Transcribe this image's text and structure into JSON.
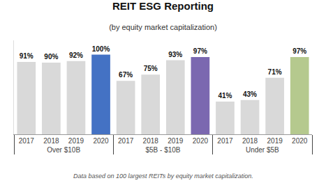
{
  "chart_data": {
    "type": "bar",
    "title": "REIT ESG Reporting",
    "subtitle": "(by equity market capitalization)",
    "annotations": [
      "Data based on 100 largest REITs by equity market capitalization."
    ],
    "series": [
      {
        "name": "Over $10B",
        "categories": [
          "2017",
          "2018",
          "2019",
          "2020"
        ],
        "values": [
          91,
          90,
          92,
          100
        ],
        "value_labels": [
          "91%",
          "90%",
          "92%",
          "100%"
        ],
        "colors": [
          "#d9d9d9",
          "#d9d9d9",
          "#d9d9d9",
          "#4472c4"
        ]
      },
      {
        "name": "$5B - $10B",
        "categories": [
          "2017",
          "2018",
          "2019",
          "2020"
        ],
        "values": [
          67,
          75,
          93,
          97
        ],
        "value_labels": [
          "67%",
          "75%",
          "93%",
          "97%"
        ],
        "colors": [
          "#d9d9d9",
          "#d9d9d9",
          "#d9d9d9",
          "#7b68b0"
        ]
      },
      {
        "name": "Under $5B",
        "categories": [
          "2017",
          "2018",
          "2019",
          "2020"
        ],
        "values": [
          41,
          43,
          71,
          97
        ],
        "value_labels": [
          "41%",
          "43%",
          "71%",
          "97%"
        ],
        "colors": [
          "#d9d9d9",
          "#d9d9d9",
          "#d9d9d9",
          "#b5c98e"
        ]
      }
    ],
    "ylim": [
      0,
      118
    ],
    "tick_labels": "x",
    "grid": false,
    "data_labels": true
  }
}
